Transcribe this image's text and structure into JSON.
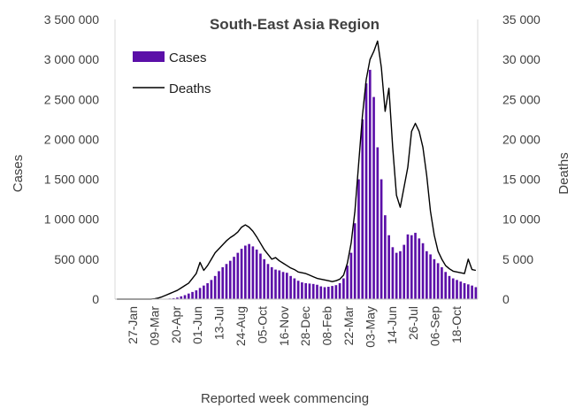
{
  "chart_data": {
    "type": "bar",
    "title": "South-East Asia Region",
    "xlabel": "Reported week commencing",
    "ylabel_left": "Cases",
    "ylabel_right": "Deaths",
    "ylim_left": [
      0,
      3500000
    ],
    "ylim_right": [
      0,
      35000
    ],
    "y_ticks_left": [
      "0",
      "500 000",
      "1 000 000",
      "1 500 000",
      "2 000 000",
      "2 500 000",
      "3 000 000",
      "3 500 000"
    ],
    "y_ticks_right": [
      "0",
      "5 000",
      "10 000",
      "15 000",
      "20 000",
      "25 000",
      "30 000",
      "35 000"
    ],
    "x_tick_labels": [
      "27-Jan",
      "09-Mar",
      "20-Apr",
      "01-Jun",
      "13-Jul",
      "24-Aug",
      "05-Oct",
      "16-Nov",
      "28-Dec",
      "08-Feb",
      "22-Mar",
      "03-May",
      "14-Jun",
      "26-Jul",
      "06-Sep",
      "18-Oct"
    ],
    "legend": {
      "position": "top-left"
    },
    "grid": false,
    "series": [
      {
        "name": "Cases",
        "kind": "bar",
        "axis": "left",
        "color": "#5B0FA8",
        "values": [
          0,
          0,
          0,
          0,
          0,
          0,
          0,
          0,
          0,
          0,
          0,
          0,
          1000,
          3000,
          8000,
          12000,
          20000,
          35000,
          50000,
          70000,
          90000,
          110000,
          140000,
          170000,
          200000,
          240000,
          290000,
          350000,
          400000,
          440000,
          480000,
          530000,
          580000,
          630000,
          670000,
          690000,
          660000,
          620000,
          570000,
          500000,
          440000,
          400000,
          370000,
          360000,
          340000,
          330000,
          290000,
          260000,
          230000,
          210000,
          200000,
          195000,
          190000,
          180000,
          160000,
          150000,
          155000,
          165000,
          175000,
          200000,
          260000,
          420000,
          580000,
          950000,
          1500000,
          2250000,
          2700000,
          2870000,
          2530000,
          1900000,
          1500000,
          1050000,
          800000,
          650000,
          580000,
          600000,
          680000,
          810000,
          800000,
          830000,
          760000,
          700000,
          600000,
          560000,
          500000,
          450000,
          400000,
          340000,
          290000,
          260000,
          240000,
          220000,
          200000,
          185000,
          170000,
          150000
        ]
      },
      {
        "name": "Deaths",
        "kind": "line",
        "axis": "right",
        "color": "#000000",
        "values": [
          0,
          0,
          0,
          0,
          0,
          0,
          0,
          0,
          0,
          0,
          50,
          150,
          300,
          500,
          700,
          900,
          1100,
          1400,
          1700,
          2000,
          2600,
          3200,
          4600,
          3600,
          4200,
          5000,
          5800,
          6300,
          6800,
          7300,
          7700,
          8000,
          8400,
          9000,
          9300,
          9000,
          8500,
          7800,
          7000,
          6200,
          5600,
          5000,
          5200,
          4800,
          4500,
          4200,
          3900,
          3700,
          3400,
          3300,
          3200,
          3000,
          2800,
          2600,
          2500,
          2400,
          2300,
          2200,
          2300,
          2500,
          3000,
          4500,
          7000,
          11000,
          17000,
          23000,
          27500,
          30000,
          31000,
          32300,
          29000,
          23500,
          26400,
          19000,
          13000,
          11500,
          14000,
          16500,
          21000,
          22000,
          21000,
          19000,
          15500,
          11000,
          8000,
          6000,
          5000,
          4200,
          3800,
          3500,
          3400,
          3300,
          3200,
          5000,
          3700,
          3600
        ]
      }
    ]
  }
}
